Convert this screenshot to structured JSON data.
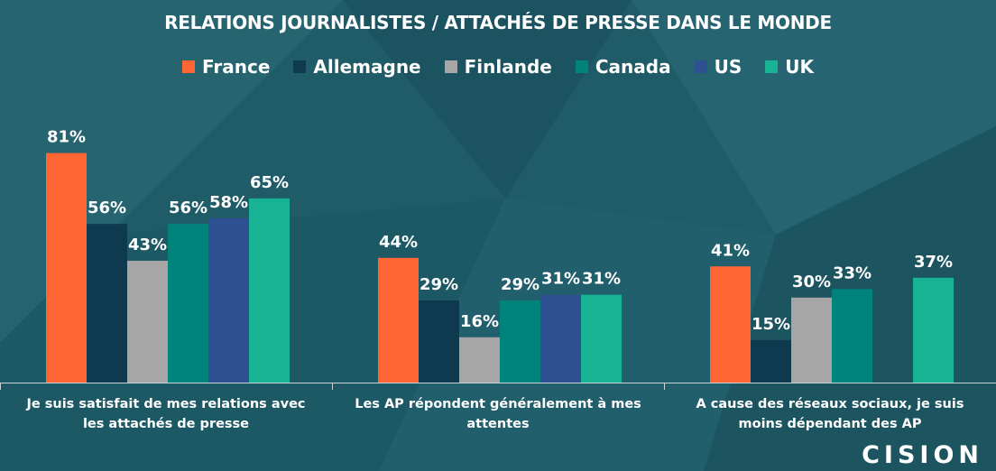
{
  "title": "RELATIONS JOURNALISTES / ATTACHÉS DE PRESSE DANS LE MONDE",
  "logo": "CISION",
  "chart_data": {
    "type": "bar",
    "title": "RELATIONS JOURNALISTES / ATTACHÉS DE PRESSE DANS LE MONDE",
    "categories": [
      "Je suis satisfait de mes relations avec les attachés de presse",
      "Les AP répondent généralement à mes attentes",
      "A cause des réseaux sociaux, je suis moins dépendant des AP"
    ],
    "series": [
      {
        "name": "France",
        "color": "#ff6633",
        "values": [
          81,
          44,
          41
        ]
      },
      {
        "name": "Allemagne",
        "color": "#0d3a4f",
        "values": [
          56,
          29,
          15
        ]
      },
      {
        "name": "Finlande",
        "color": "#a6a6a6",
        "values": [
          43,
          16,
          30
        ]
      },
      {
        "name": "Canada",
        "color": "#00837a",
        "values": [
          56,
          29,
          33
        ]
      },
      {
        "name": "US",
        "color": "#2e5192",
        "values": [
          58,
          31,
          null
        ]
      },
      {
        "name": "UK",
        "color": "#17b394",
        "values": [
          65,
          31,
          37
        ]
      }
    ],
    "value_suffix": "%",
    "ylim": [
      0,
      100
    ],
    "grid": false,
    "legend_position": "top"
  }
}
